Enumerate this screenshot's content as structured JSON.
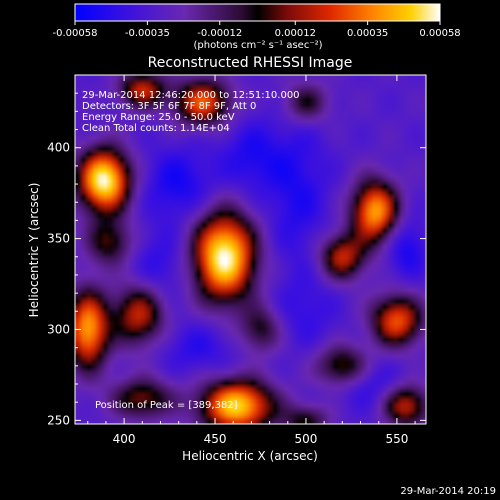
{
  "chart_data": {
    "type": "heatmap",
    "title": "Reconstructed RHESSI Image",
    "colorbar": {
      "range": [
        -0.00058,
        0.00058
      ],
      "ticks": [
        -0.00058,
        -0.00035,
        -0.00012,
        0.00012,
        0.00035,
        0.00058
      ],
      "tick_labels": [
        "-0.00058",
        "-0.00035",
        "-0.00012",
        "0.00012",
        "0.00035",
        "0.00058"
      ],
      "units_label": "(photons cm⁻² s⁻¹ asec⁻²)"
    },
    "xlabel": "Heliocentric X (arcsec)",
    "ylabel": "Heliocentric Y (arcsec)",
    "xlim": [
      373,
      566
    ],
    "ylim": [
      248,
      440
    ],
    "xticks": [
      400,
      450,
      500,
      550
    ],
    "yticks": [
      250,
      300,
      350,
      400
    ],
    "info_lines": [
      "29-Mar-2014 12:46:20.000 to 12:51:10.000",
      "Detectors: 3F 5F 6F 7F 8F 9F, Att 0",
      "Energy Range: 25.0 - 50.0 keV",
      "Clean     Total counts: 1.14E+04"
    ],
    "peak_label": "Position of Peak = [389,382]",
    "peak": {
      "x": 389,
      "y": 382
    },
    "timestamp": "29-Mar-2014 20:19",
    "sources": [
      {
        "x": 455,
        "y": 340,
        "amp": 1.0,
        "sx": 12,
        "sy": 17
      },
      {
        "x": 389,
        "y": 382,
        "amp": 1.0,
        "sx": 10,
        "sy": 12
      },
      {
        "x": 462,
        "y": 258,
        "amp": 0.9,
        "sx": 14,
        "sy": 10
      },
      {
        "x": 443,
        "y": 425,
        "amp": 0.65,
        "sx": 11,
        "sy": 9
      },
      {
        "x": 410,
        "y": 432,
        "amp": 0.55,
        "sx": 9,
        "sy": 7
      },
      {
        "x": 538,
        "y": 365,
        "amp": 0.8,
        "sx": 9,
        "sy": 12
      },
      {
        "x": 520,
        "y": 340,
        "amp": 0.55,
        "sx": 9,
        "sy": 9
      },
      {
        "x": 550,
        "y": 305,
        "amp": 0.65,
        "sx": 10,
        "sy": 10
      },
      {
        "x": 520,
        "y": 280,
        "amp": 0.45,
        "sx": 10,
        "sy": 8
      },
      {
        "x": 380,
        "y": 300,
        "amp": 0.8,
        "sx": 8,
        "sy": 15
      },
      {
        "x": 408,
        "y": 308,
        "amp": 0.55,
        "sx": 10,
        "sy": 12
      },
      {
        "x": 410,
        "y": 262,
        "amp": 0.45,
        "sx": 12,
        "sy": 8
      },
      {
        "x": 555,
        "y": 258,
        "amp": 0.55,
        "sx": 9,
        "sy": 8
      },
      {
        "x": 500,
        "y": 425,
        "amp": 0.35,
        "sx": 9,
        "sy": 8
      },
      {
        "x": 475,
        "y": 300,
        "amp": 0.35,
        "sx": 8,
        "sy": 9
      },
      {
        "x": 392,
        "y": 348,
        "amp": 0.4,
        "sx": 9,
        "sy": 9
      },
      {
        "x": 500,
        "y": 250,
        "amp": 0.35,
        "sx": 9,
        "sy": 6
      }
    ],
    "negative_regions": [
      {
        "x": 430,
        "y": 380,
        "amp": 0.35,
        "sx": 14,
        "sy": 14
      },
      {
        "x": 495,
        "y": 375,
        "amp": 0.3,
        "sx": 12,
        "sy": 28
      },
      {
        "x": 470,
        "y": 395,
        "amp": 0.3,
        "sx": 12,
        "sy": 14
      },
      {
        "x": 555,
        "y": 345,
        "amp": 0.35,
        "sx": 8,
        "sy": 12
      },
      {
        "x": 420,
        "y": 335,
        "amp": 0.25,
        "sx": 12,
        "sy": 14
      },
      {
        "x": 440,
        "y": 290,
        "amp": 0.25,
        "sx": 14,
        "sy": 10
      },
      {
        "x": 535,
        "y": 270,
        "amp": 0.25,
        "sx": 12,
        "sy": 10
      },
      {
        "x": 500,
        "y": 310,
        "amp": 0.2,
        "sx": 12,
        "sy": 14
      }
    ]
  }
}
